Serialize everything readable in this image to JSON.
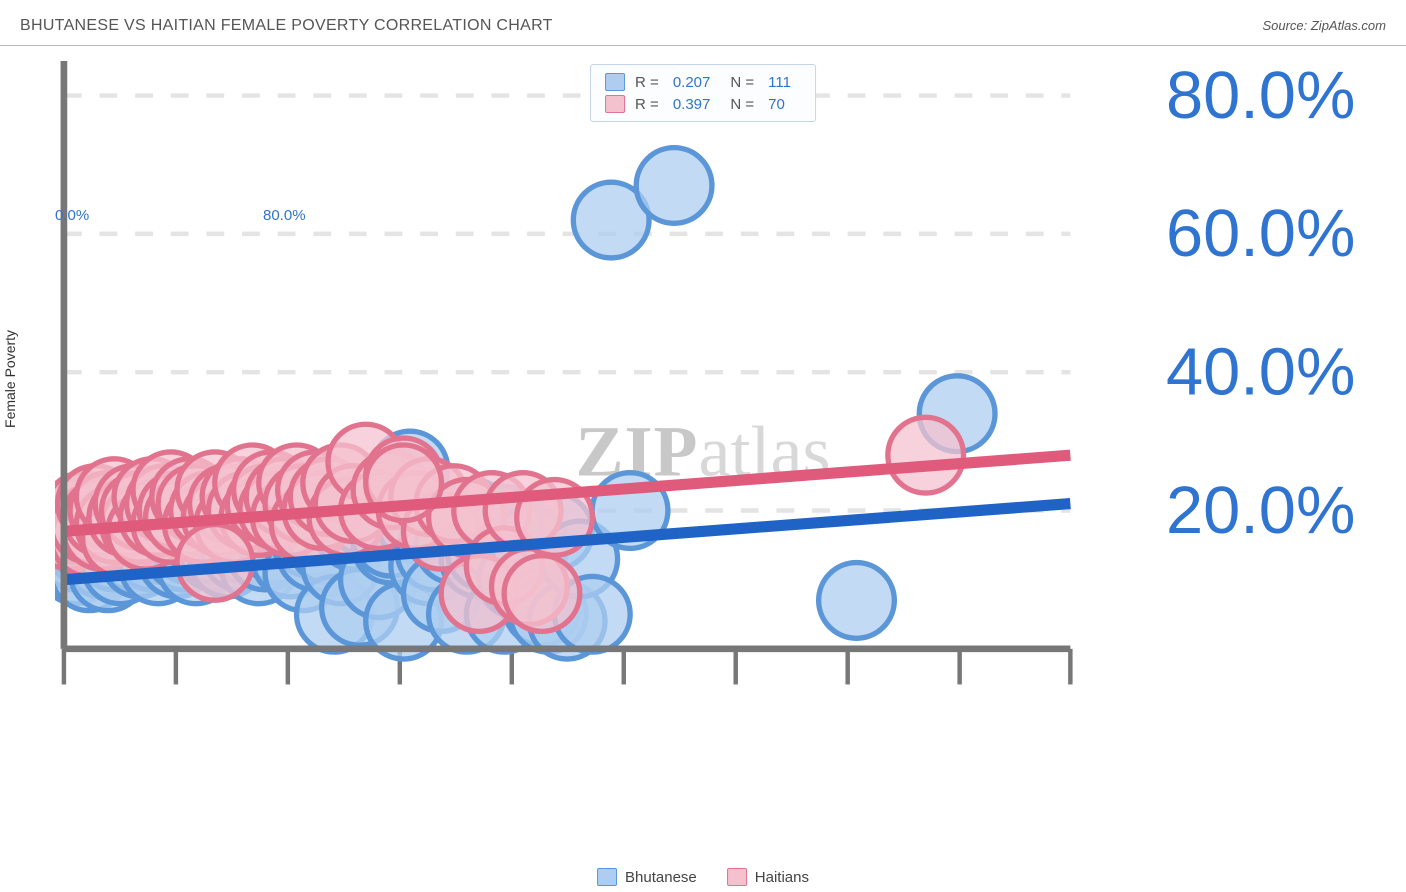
{
  "header": {
    "title": "BHUTANESE VS HAITIAN FEMALE POVERTY CORRELATION CHART",
    "source_prefix": "Source: ",
    "source": "ZipAtlas.com"
  },
  "watermark": {
    "zip": "ZIP",
    "atlas": "atlas"
  },
  "chart": {
    "type": "scatter",
    "ylabel": "Female Poverty",
    "background_color": "#ffffff",
    "grid_color": "#e4e4e4",
    "axis_line_color": "#777777",
    "xlim": [
      0,
      80
    ],
    "ylim": [
      0,
      85
    ],
    "ytick_step": 20,
    "ytick_labels": [
      "20.0%",
      "40.0%",
      "60.0%",
      "80.0%"
    ],
    "xtick_positions": [
      0,
      8.9,
      17.8,
      26.7,
      35.6,
      44.5,
      53.4,
      62.3,
      71.2,
      80
    ],
    "x_min_label": "0.0%",
    "x_max_label": "80.0%",
    "label_color": "#2f74d0",
    "label_fontsize": 15,
    "marker_radius": 8.5,
    "marker_stroke_width": 1.2,
    "line_width": 2.5,
    "series": [
      {
        "name": "Bhutanese",
        "fill": "#aecdf0",
        "stroke": "#5a96d8",
        "line_color": "#1f63c7",
        "R": "0.207",
        "N": "111",
        "trend": {
          "x1": 0,
          "y1": 10,
          "x2": 80,
          "y2": 21
        },
        "points": [
          [
            0,
            15
          ],
          [
            0.5,
            14
          ],
          [
            0.5,
            16.5
          ],
          [
            0.5,
            18
          ],
          [
            0.8,
            17
          ],
          [
            1,
            12
          ],
          [
            1,
            14
          ],
          [
            1.2,
            19
          ],
          [
            1.5,
            15
          ],
          [
            1.5,
            17.5
          ],
          [
            2,
            16
          ],
          [
            2,
            11
          ],
          [
            2,
            18
          ],
          [
            2.5,
            14
          ],
          [
            2.5,
            17
          ],
          [
            3,
            13
          ],
          [
            3,
            15
          ],
          [
            3,
            19
          ],
          [
            3.5,
            16
          ],
          [
            3.5,
            11
          ],
          [
            4,
            17
          ],
          [
            4,
            14
          ],
          [
            4,
            18.5
          ],
          [
            4.5,
            15
          ],
          [
            4.5,
            12
          ],
          [
            5,
            16
          ],
          [
            5,
            18
          ],
          [
            5.5,
            14
          ],
          [
            5.5,
            20
          ],
          [
            6,
            13
          ],
          [
            6,
            17
          ],
          [
            6,
            15
          ],
          [
            6.5,
            18
          ],
          [
            7,
            14
          ],
          [
            7,
            19
          ],
          [
            7.5,
            16
          ],
          [
            7.5,
            12
          ],
          [
            8,
            17
          ],
          [
            8,
            15
          ],
          [
            8.5,
            18
          ],
          [
            9,
            13
          ],
          [
            9,
            16
          ],
          [
            9.5,
            14
          ],
          [
            10,
            19
          ],
          [
            10,
            15
          ],
          [
            10,
            17
          ],
          [
            10.5,
            12
          ],
          [
            11,
            20
          ],
          [
            11,
            16
          ],
          [
            11.5,
            18
          ],
          [
            12,
            14
          ],
          [
            12,
            15
          ],
          [
            12.5,
            17
          ],
          [
            13,
            13
          ],
          [
            13,
            19
          ],
          [
            13.5,
            16
          ],
          [
            14,
            14
          ],
          [
            14,
            18
          ],
          [
            14.5,
            15
          ],
          [
            15,
            17
          ],
          [
            15.5,
            12
          ],
          [
            16,
            16
          ],
          [
            16,
            14
          ],
          [
            16.5,
            19
          ],
          [
            17,
            15
          ],
          [
            17.5,
            18
          ],
          [
            18,
            13
          ],
          [
            18.5,
            17
          ],
          [
            19,
            11
          ],
          [
            19.5,
            16
          ],
          [
            20,
            14
          ],
          [
            20,
            18
          ],
          [
            21,
            15
          ],
          [
            21.5,
            5
          ],
          [
            22,
            12
          ],
          [
            23,
            17
          ],
          [
            23.5,
            6
          ],
          [
            24,
            19
          ],
          [
            25,
            10
          ],
          [
            26,
            15
          ],
          [
            26,
            16
          ],
          [
            27,
            4
          ],
          [
            27.5,
            26
          ],
          [
            28,
            18
          ],
          [
            29,
            12
          ],
          [
            29.5,
            14
          ],
          [
            30,
            17
          ],
          [
            30,
            8
          ],
          [
            31,
            15
          ],
          [
            32,
            5
          ],
          [
            32.5,
            19
          ],
          [
            33,
            13
          ],
          [
            33.5,
            14
          ],
          [
            34,
            16
          ],
          [
            35,
            5
          ],
          [
            35,
            18
          ],
          [
            36,
            10
          ],
          [
            37,
            15
          ],
          [
            38,
            6
          ],
          [
            38.5,
            5
          ],
          [
            39,
            17
          ],
          [
            40,
            4
          ],
          [
            41,
            13
          ],
          [
            42,
            5
          ],
          [
            43.5,
            62
          ],
          [
            48.5,
            67
          ],
          [
            63,
            7
          ],
          [
            71,
            34
          ],
          [
            45,
            20
          ]
        ]
      },
      {
        "name": "Haitians",
        "fill": "#f4c2cf",
        "stroke": "#e2738f",
        "line_color": "#e05a7c",
        "R": "0.397",
        "N": "70",
        "trend": {
          "x1": 0,
          "y1": 17,
          "x2": 80,
          "y2": 28
        },
        "points": [
          [
            0.5,
            17
          ],
          [
            1,
            18
          ],
          [
            1,
            19
          ],
          [
            1.5,
            20
          ],
          [
            2,
            16
          ],
          [
            2,
            18
          ],
          [
            2.5,
            21
          ],
          [
            3,
            17
          ],
          [
            3,
            19
          ],
          [
            3.5,
            20
          ],
          [
            4,
            18
          ],
          [
            4,
            22
          ],
          [
            4.5,
            16
          ],
          [
            5,
            19
          ],
          [
            5.5,
            21
          ],
          [
            6,
            18
          ],
          [
            6,
            20
          ],
          [
            6.5,
            17
          ],
          [
            7,
            22
          ],
          [
            7.5,
            19
          ],
          [
            8,
            21
          ],
          [
            8.5,
            18
          ],
          [
            8.5,
            23
          ],
          [
            9,
            20
          ],
          [
            9.5,
            19
          ],
          [
            10,
            22
          ],
          [
            10.5,
            21
          ],
          [
            11,
            18
          ],
          [
            11.5,
            20
          ],
          [
            12,
            23
          ],
          [
            12.5,
            19
          ],
          [
            13,
            21
          ],
          [
            13.5,
            18
          ],
          [
            14,
            22
          ],
          [
            14.5,
            20
          ],
          [
            15,
            24
          ],
          [
            15.5,
            19
          ],
          [
            16,
            21
          ],
          [
            16.5,
            23
          ],
          [
            17,
            20
          ],
          [
            17.5,
            22
          ],
          [
            18,
            19
          ],
          [
            18.5,
            24
          ],
          [
            19,
            21
          ],
          [
            19.5,
            18
          ],
          [
            20,
            23
          ],
          [
            20.5,
            20
          ],
          [
            21,
            22
          ],
          [
            22,
            24
          ],
          [
            22.5,
            19
          ],
          [
            23,
            21
          ],
          [
            24,
            27
          ],
          [
            25,
            20
          ],
          [
            26,
            23
          ],
          [
            27,
            25
          ],
          [
            28,
            20
          ],
          [
            29,
            22
          ],
          [
            30,
            17
          ],
          [
            31,
            21
          ],
          [
            32,
            19
          ],
          [
            33,
            8
          ],
          [
            34,
            20
          ],
          [
            35,
            12
          ],
          [
            36.5,
            20
          ],
          [
            37,
            9
          ],
          [
            38,
            8
          ],
          [
            39,
            19
          ],
          [
            68.5,
            28
          ],
          [
            12,
            12.5
          ],
          [
            27,
            24
          ]
        ]
      }
    ],
    "legend_bottom": [
      {
        "label": "Bhutanese",
        "fill": "#aecdf0",
        "stroke": "#5a96d8"
      },
      {
        "label": "Haitians",
        "fill": "#f4c2cf",
        "stroke": "#e2738f"
      }
    ]
  }
}
